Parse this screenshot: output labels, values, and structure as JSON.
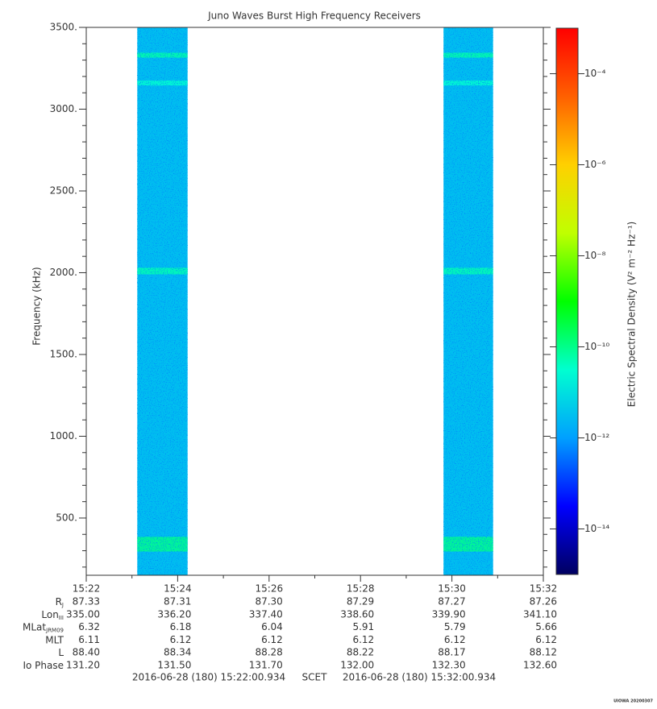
{
  "chart_data": {
    "type": "spectrogram",
    "title": "Juno Waves Burst High Frequency Receivers",
    "ylabel": "Frequency (kHz)",
    "xlim": [
      "15:22",
      "15:32"
    ],
    "xticks": [
      "15:22",
      "15:24",
      "15:26",
      "15:28",
      "15:30",
      "15:32"
    ],
    "xminor": [
      "15:23",
      "15:25",
      "15:27",
      "15:29",
      "15:31"
    ],
    "ylim": [
      150,
      3500
    ],
    "yticks": [
      {
        "value": 500,
        "label": "500."
      },
      {
        "value": 1000,
        "label": "1000."
      },
      {
        "value": 1500,
        "label": "1500."
      },
      {
        "value": 2000,
        "label": "2000."
      },
      {
        "value": 2500,
        "label": "2500."
      },
      {
        "value": 3000,
        "label": "3000."
      },
      {
        "value": 3500,
        "label": "3500."
      }
    ],
    "yminor": [
      200,
      300,
      400,
      600,
      700,
      800,
      900,
      1100,
      1200,
      1300,
      1400,
      1600,
      1700,
      1800,
      1900,
      2100,
      2200,
      2300,
      2400,
      2600,
      2700,
      2800,
      2900,
      3100,
      3200,
      3300,
      3400
    ],
    "bursts": [
      {
        "start": "15:23:07",
        "end": "15:24:13",
        "level": 3e-12
      },
      {
        "start": "15:29:49",
        "end": "15:30:54",
        "level": 3e-12
      }
    ],
    "bands": [
      {
        "frequency": 340,
        "bandwidth": 90,
        "level": 1e-10
      },
      {
        "frequency": 2010,
        "bandwidth": 40,
        "level": 5e-11
      },
      {
        "frequency": 3160,
        "bandwidth": 30,
        "level": 3e-11
      },
      {
        "frequency": 3330,
        "bandwidth": 30,
        "level": 6e-11
      }
    ],
    "zlim": [
      1e-15,
      0.001
    ],
    "log_z": true,
    "zticks": [
      {
        "value": 0.0001,
        "label": "10⁻⁴"
      },
      {
        "value": 1e-06,
        "label": "10⁻⁶"
      },
      {
        "value": 1e-08,
        "label": "10⁻⁸"
      },
      {
        "value": 1e-10,
        "label": "10⁻¹⁰"
      },
      {
        "value": 1e-12,
        "label": "10⁻¹²"
      },
      {
        "value": 1e-14,
        "label": "10⁻¹⁴"
      }
    ],
    "zlabel": "Electric Spectral Density (V² m⁻² Hz⁻¹)",
    "colormap": [
      "#000060",
      "#0000ff",
      "#00a0ff",
      "#00ffd0",
      "#00ff00",
      "#c0ff00",
      "#ffd000",
      "#ff6000",
      "#ff0000"
    ]
  },
  "ephemeris": {
    "rows": [
      {
        "label": "R",
        "sub": "J",
        "values": [
          "87.33",
          "87.31",
          "87.30",
          "87.29",
          "87.27",
          "87.26"
        ]
      },
      {
        "label": "Lon",
        "sub": "III",
        "values": [
          "335.00",
          "336.20",
          "337.40",
          "338.60",
          "339.90",
          "341.10"
        ]
      },
      {
        "label": "MLat",
        "sub": "JRM09",
        "values": [
          "6.32",
          "6.18",
          "6.04",
          "5.91",
          "5.79",
          "5.66"
        ]
      },
      {
        "label": "MLT",
        "values": [
          "6.11",
          "6.12",
          "6.12",
          "6.12",
          "6.12",
          "6.12"
        ]
      },
      {
        "label": "L",
        "values": [
          "88.40",
          "88.34",
          "88.28",
          "88.22",
          "88.17",
          "88.12"
        ]
      },
      {
        "label": "Io Phase",
        "values": [
          "131.20",
          "131.50",
          "131.70",
          "132.00",
          "132.30",
          "132.60"
        ]
      }
    ]
  },
  "footer": {
    "start": "2016-06-28 (180) 15:22:00.934",
    "frame": "SCET",
    "end": "2016-06-28 (180) 15:32:00.934"
  },
  "credit": "UIOWA 20200307"
}
